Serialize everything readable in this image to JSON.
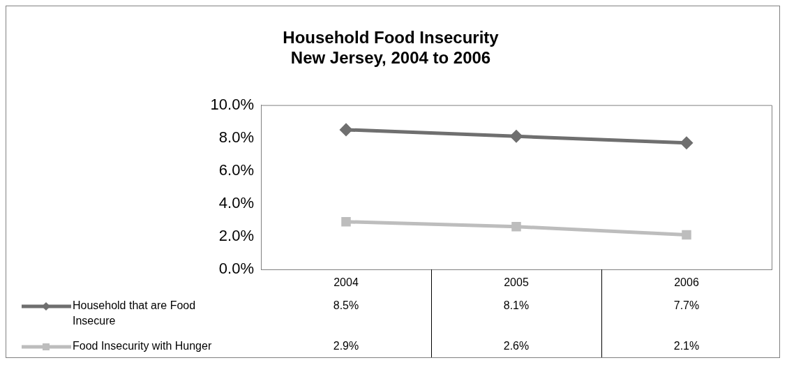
{
  "chart_data": {
    "type": "line",
    "title": "Household Food Insecurity\nNew Jersey, 2004 to 2006",
    "categories": [
      "2004",
      "2005",
      "2006"
    ],
    "series": [
      {
        "name": "Household that are Food Insecure",
        "color": "#6f6f6f",
        "marker": "diamond",
        "values": [
          8.5,
          8.1,
          7.7
        ],
        "value_labels": [
          "8.5%",
          "8.1%",
          "7.7%"
        ]
      },
      {
        "name": "Food Insecurity with Hunger",
        "color": "#bdbdbd",
        "marker": "square",
        "values": [
          2.9,
          2.6,
          2.1
        ],
        "value_labels": [
          "2.9%",
          "2.6%",
          "2.1%"
        ]
      }
    ],
    "ylim": [
      0,
      10
    ],
    "yticks": [
      {
        "value": 0,
        "label": "0.0%"
      },
      {
        "value": 2,
        "label": "2.0%"
      },
      {
        "value": 4,
        "label": "4.0%"
      },
      {
        "value": 6,
        "label": "6.0%"
      },
      {
        "value": 8,
        "label": "8.0%"
      },
      {
        "value": 10,
        "label": "10.0%"
      }
    ],
    "grid": false,
    "legend": "bottom",
    "line_style": "solid"
  }
}
